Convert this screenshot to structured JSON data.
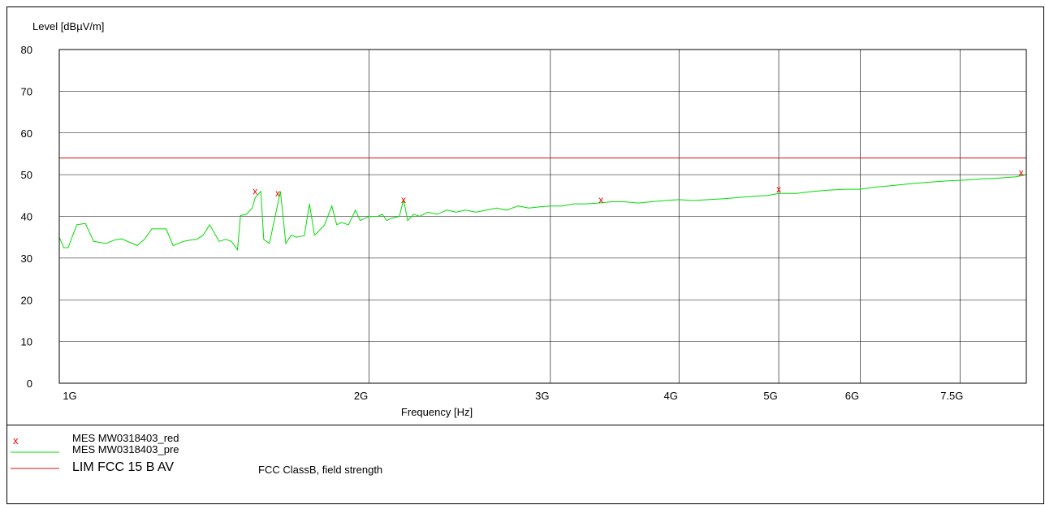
{
  "chart_data": {
    "type": "line",
    "ylabel": "Level [dBµV/m]",
    "xlabel": "Frequency [Hz]",
    "x_scale": "log",
    "xlim": [
      1000000000,
      8700000000
    ],
    "ylim": [
      0,
      80
    ],
    "yticks": [
      0,
      10,
      20,
      30,
      40,
      50,
      60,
      70,
      80
    ],
    "xticks": [
      {
        "value": 1000000000,
        "label": "1G"
      },
      {
        "value": 2000000000,
        "label": "2G"
      },
      {
        "value": 3000000000,
        "label": "3G"
      },
      {
        "value": 4000000000,
        "label": "4G"
      },
      {
        "value": 5000000000,
        "label": "5G"
      },
      {
        "value": 6000000000,
        "label": "6G"
      },
      {
        "value": 7500000000,
        "label": "7.5G"
      }
    ],
    "grid": true,
    "limit_line": {
      "name": "LIM  FCC 15 B AV",
      "value": 54,
      "color": "#d01010"
    },
    "series": [
      {
        "name": "MES  MW0318403_pre",
        "color": "#00dd00",
        "x": [
          1000000000,
          1010000000,
          1020000000,
          1040000000,
          1060000000,
          1080000000,
          1110000000,
          1130000000,
          1150000000,
          1190000000,
          1210000000,
          1230000000,
          1270000000,
          1290000000,
          1320000000,
          1340000000,
          1360000000,
          1380000000,
          1400000000,
          1430000000,
          1450000000,
          1470000000,
          1480000000,
          1490000000,
          1500000000,
          1520000000,
          1540000000,
          1550000000,
          1570000000,
          1580000000,
          1600000000,
          1640000000,
          1660000000,
          1680000000,
          1700000000,
          1710000000,
          1730000000,
          1750000000,
          1770000000,
          1780000000,
          1810000000,
          1840000000,
          1860000000,
          1880000000,
          1910000000,
          1940000000,
          1960000000,
          1980000000,
          2000000000,
          2040000000,
          2060000000,
          2080000000,
          2100000000,
          2140000000,
          2160000000,
          2180000000,
          2210000000,
          2240000000,
          2280000000,
          2330000000,
          2380000000,
          2430000000,
          2480000000,
          2540000000,
          2600000000,
          2660000000,
          2720000000,
          2790000000,
          2860000000,
          2930000000,
          3000000000,
          3080000000,
          3160000000,
          3250000000,
          3340000000,
          3440000000,
          3540000000,
          3650000000,
          3760000000,
          3880000000,
          4000000000,
          4130000000,
          4270000000,
          4410000000,
          4560000000,
          4720000000,
          4880000000,
          5000000000,
          5200000000,
          5400000000,
          5600000000,
          5800000000,
          6000000000,
          6200000000,
          6400000000,
          6700000000,
          7000000000,
          7300000000,
          7600000000,
          7900000000,
          8200000000,
          8500000000,
          8700000000
        ],
        "y": [
          35,
          32.5,
          32.5,
          38,
          38.3,
          34,
          33.5,
          34.3,
          34.6,
          33,
          34.5,
          37,
          37,
          33,
          34,
          34.3,
          34.5,
          35.5,
          38,
          34,
          34.5,
          34,
          33,
          32,
          40.2,
          40.5,
          42,
          44.5,
          46,
          34.5,
          33.5,
          46,
          33.5,
          35.5,
          35,
          35.2,
          35.3,
          43,
          35.5,
          36,
          38,
          42.5,
          38,
          38.5,
          38,
          41.5,
          39,
          39.5,
          40,
          40,
          40.5,
          39,
          39.5,
          40,
          44,
          39,
          40.5,
          40,
          41,
          40.5,
          41.5,
          41,
          41.5,
          41,
          41.5,
          42,
          41.5,
          42.5,
          42,
          42.3,
          42.5,
          42.5,
          43,
          43,
          43.2,
          43.5,
          43.5,
          43.2,
          43.5,
          43.8,
          44,
          43.8,
          44,
          44.2,
          44.5,
          44.8,
          45,
          45.5,
          45.5,
          46,
          46.3,
          46.5,
          46.5,
          47,
          47.3,
          47.8,
          48.2,
          48.5,
          48.7,
          49,
          49.2,
          49.5,
          50
        ]
      }
    ],
    "markers": {
      "name": "MES  MW0318403_red",
      "symbol": "x",
      "color": "#ee0000",
      "x": [
        1550000000,
        1630000000,
        2160000000,
        3360000000,
        5000000000,
        8600000000
      ],
      "y": [
        46,
        45.5,
        44,
        44,
        46.5,
        50.5
      ]
    }
  },
  "legend": {
    "markers": {
      "symbol": "x",
      "label": "MES  MW0318403_red"
    },
    "pre": {
      "label": "MES  MW0318403_pre"
    },
    "lim": {
      "label": "LIM  FCC 15 B AV"
    },
    "note": "FCC ClassB, field strength"
  }
}
